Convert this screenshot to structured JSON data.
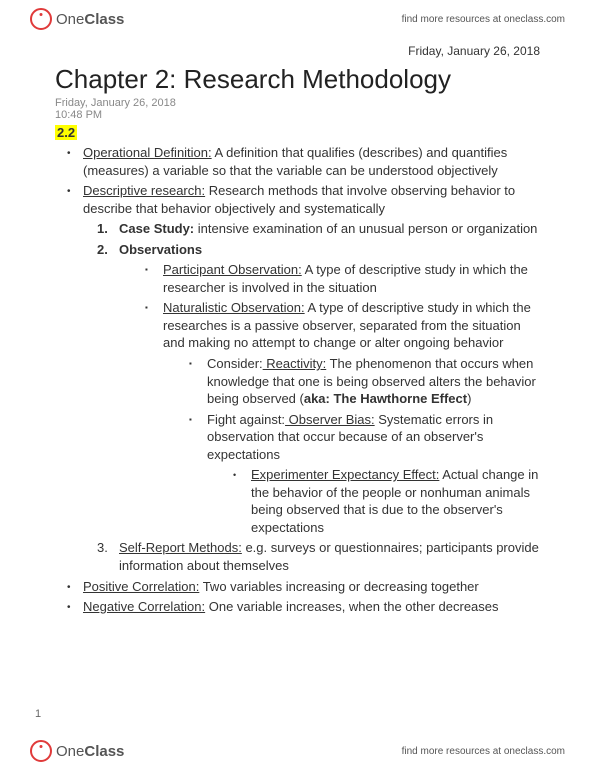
{
  "brand": {
    "part1": "One",
    "part2": "Class"
  },
  "resourcesText": "find more resources at oneclass.com",
  "topDate": "Friday, January 26, 2018",
  "title": "Chapter 2: Research Methodology",
  "metaDate": "Friday, January 26, 2018",
  "metaTime": "10:48 PM",
  "sectionLabel": "2.2",
  "items": {
    "opdef_term": "Operational Definition:",
    "opdef_text": " A definition that qualifies (describes) and quantifies (measures) a variable so that the variable can be understood objectively",
    "desc_term": "Descriptive research:",
    "desc_text": " Research methods that involve observing behavior to describe that behavior objectively and systematically",
    "n1": "1.",
    "casestudy_label": "Case Study:",
    "casestudy_text": " intensive examination of an unusual person or organization",
    "n2": "2.",
    "obs_label": "Observations",
    "partobs_term": "Participant Observation:",
    "partobs_text": " A type of descriptive study in which the researcher is involved in the situation",
    "natobs_term": "Naturalistic Observation:",
    "natobs_text": " A type of descriptive study in which the researches is a passive observer, separated from the situation and making no attempt to change or alter ongoing behavior",
    "consider": "Consider:",
    "reactivity_term": " Reactivity:",
    "reactivity_text": " The phenomenon that occurs when knowledge that one is being observed alters the behavior being observed (",
    "hawthorne": "aka: The Hawthorne Effect",
    "close_paren": ")",
    "fight": "Fight against:",
    "obsbias_term": " Observer Bias:",
    "obsbias_text": " Systematic errors in observation that occur because of an observer's expectations",
    "expeffect_term": "Experimenter Expectancy Effect:",
    "expeffect_text": " Actual change in the behavior of the people or nonhuman animals being observed that is due to the observer's expectations",
    "n3": "3.",
    "selfreport_term": "Self-Report Methods:",
    "selfreport_text": " e.g. surveys or questionnaires; participants provide information about themselves",
    "poscorr_term": "Positive Correlation:",
    "poscorr_text": " Two variables increasing or decreasing together",
    "negcorr_term": "Negative Correlation:",
    "negcorr_text": " One variable increases, when the other decreases"
  },
  "pageNumber": "1"
}
